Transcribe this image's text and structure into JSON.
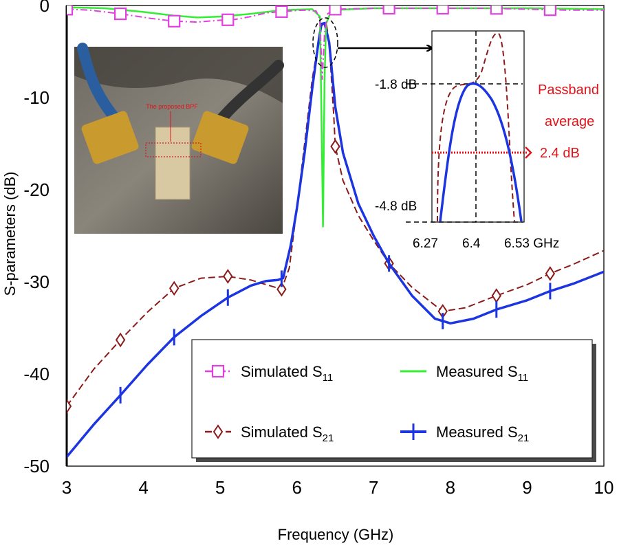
{
  "chart_data": {
    "type": "line",
    "xlabel": "Frequency (GHz)",
    "ylabel": "S-parameters (dB)",
    "xlim": [
      3,
      10
    ],
    "ylim": [
      -50,
      0
    ],
    "xticks": [
      "3",
      "4",
      "5",
      "6",
      "7",
      "8",
      "9",
      "10"
    ],
    "yticks": [
      "0",
      "-10",
      "-20",
      "-30",
      "-40",
      "-50"
    ],
    "series": [
      {
        "name": "Simulated S11",
        "legend_main": "Simulated S",
        "legend_sub": "11",
        "color": "#e040e0",
        "style": "dash-dot",
        "marker": "square",
        "points": [
          [
            3,
            -0.4
          ],
          [
            3.3,
            -0.5
          ],
          [
            3.7,
            -0.9
          ],
          [
            4.1,
            -1.4
          ],
          [
            4.4,
            -1.7
          ],
          [
            4.7,
            -1.8
          ],
          [
            5.0,
            -1.6
          ],
          [
            5.2,
            -1.5
          ],
          [
            5.4,
            -1.2
          ],
          [
            5.6,
            -0.8
          ],
          [
            5.9,
            -0.6
          ],
          [
            6.1,
            -0.5
          ],
          [
            6.25,
            -0.6
          ],
          [
            6.3,
            -1.5
          ],
          [
            6.33,
            -8
          ],
          [
            6.36,
            -3
          ],
          [
            6.4,
            -0.9
          ],
          [
            6.5,
            -0.4
          ],
          [
            7,
            -0.3
          ],
          [
            7.5,
            -0.3
          ],
          [
            8,
            -0.3
          ],
          [
            8.5,
            -0.3
          ],
          [
            9,
            -0.4
          ],
          [
            9.5,
            -0.5
          ],
          [
            10,
            -0.5
          ]
        ],
        "marker_x": [
          3,
          3.7,
          4.4,
          5.1,
          5.8,
          6.5,
          7.2,
          7.9,
          8.6,
          9.3
        ]
      },
      {
        "name": "Measured S11",
        "legend_main": "Measured S",
        "legend_sub": "11",
        "color": "#33ee33",
        "style": "solid",
        "marker": "none",
        "points": [
          [
            3,
            -0.2
          ],
          [
            3.5,
            -0.3
          ],
          [
            4,
            -0.7
          ],
          [
            4.4,
            -1.1
          ],
          [
            4.7,
            -1.3
          ],
          [
            5.0,
            -1.2
          ],
          [
            5.4,
            -0.9
          ],
          [
            5.8,
            -0.5
          ],
          [
            6.2,
            -0.4
          ],
          [
            6.3,
            -1.2
          ],
          [
            6.32,
            -12
          ],
          [
            6.34,
            -24
          ],
          [
            6.36,
            -8
          ],
          [
            6.38,
            -2
          ],
          [
            6.45,
            -0.5
          ],
          [
            7,
            -0.3
          ],
          [
            8,
            -0.3
          ],
          [
            9,
            -0.3
          ],
          [
            10,
            -0.4
          ]
        ],
        "marker_x": []
      },
      {
        "name": "Simulated S21",
        "legend_main": "Simulated S",
        "legend_sub": "21",
        "color": "#8b1a1a",
        "style": "dashed",
        "marker": "diamond",
        "points": [
          [
            3,
            -43.5
          ],
          [
            3.35,
            -39.5
          ],
          [
            3.7,
            -36.3
          ],
          [
            4.05,
            -33.3
          ],
          [
            4.4,
            -30.7
          ],
          [
            4.75,
            -29.6
          ],
          [
            5.1,
            -29.4
          ],
          [
            5.4,
            -29.8
          ],
          [
            5.6,
            -30.3
          ],
          [
            5.8,
            -30.8
          ],
          [
            5.9,
            -28.5
          ],
          [
            6.0,
            -22
          ],
          [
            6.1,
            -15
          ],
          [
            6.2,
            -8
          ],
          [
            6.28,
            -4
          ],
          [
            6.32,
            -2.2
          ],
          [
            6.38,
            -1.8
          ],
          [
            6.42,
            -4
          ],
          [
            6.48,
            -12
          ],
          [
            6.5,
            -15.3
          ],
          [
            6.6,
            -19
          ],
          [
            6.8,
            -22.8
          ],
          [
            7,
            -25.5
          ],
          [
            7.2,
            -28
          ],
          [
            7.5,
            -30.6
          ],
          [
            7.9,
            -33.2
          ],
          [
            8.2,
            -32.8
          ],
          [
            8.6,
            -31.5
          ],
          [
            9.0,
            -30.3
          ],
          [
            9.3,
            -29.1
          ],
          [
            9.6,
            -28.1
          ],
          [
            10,
            -26.6
          ]
        ],
        "marker_x": [
          3,
          3.7,
          4.4,
          5.1,
          5.8,
          6.5,
          7.2,
          7.9,
          8.6,
          9.3
        ]
      },
      {
        "name": "Measured S21",
        "legend_main": "Measured S",
        "legend_sub": "21",
        "color": "#1c35e0",
        "style": "solid",
        "marker": "vbar",
        "points": [
          [
            3,
            -49
          ],
          [
            3.35,
            -45.5
          ],
          [
            3.7,
            -42.3
          ],
          [
            4.05,
            -39
          ],
          [
            4.4,
            -36
          ],
          [
            4.75,
            -33.7
          ],
          [
            5.1,
            -31.7
          ],
          [
            5.4,
            -30.4
          ],
          [
            5.6,
            -29.9
          ],
          [
            5.75,
            -29.8
          ],
          [
            5.82,
            -29.6
          ],
          [
            5.92,
            -26
          ],
          [
            6.0,
            -22
          ],
          [
            6.1,
            -16
          ],
          [
            6.2,
            -9
          ],
          [
            6.28,
            -4
          ],
          [
            6.32,
            -2
          ],
          [
            6.36,
            -1.9
          ],
          [
            6.42,
            -4
          ],
          [
            6.5,
            -11
          ],
          [
            6.6,
            -16
          ],
          [
            6.8,
            -21.5
          ],
          [
            7,
            -25
          ],
          [
            7.2,
            -28
          ],
          [
            7.5,
            -31.5
          ],
          [
            7.8,
            -34
          ],
          [
            8.0,
            -34.5
          ],
          [
            8.3,
            -34
          ],
          [
            8.6,
            -33
          ],
          [
            9.0,
            -32
          ],
          [
            9.3,
            -31
          ],
          [
            9.6,
            -30.2
          ],
          [
            10,
            -28.9
          ]
        ],
        "marker_x": [
          3.7,
          4.4,
          5.1,
          5.8,
          7.2,
          7.9,
          8.6,
          9.3
        ]
      }
    ],
    "inset": {
      "xlim": [
        6.27,
        6.53
      ],
      "ylim": [
        -4.8,
        -1.8
      ],
      "xtick_labels": [
        "6.27",
        "6.4",
        "6.53 GHz"
      ],
      "ytick_labels": [
        "-1.8 dB",
        "-4.8 dB"
      ],
      "annotation_lines": [
        "Passband",
        "average",
        "2.4 dB"
      ]
    },
    "photo_label": "The proposed BPF"
  }
}
